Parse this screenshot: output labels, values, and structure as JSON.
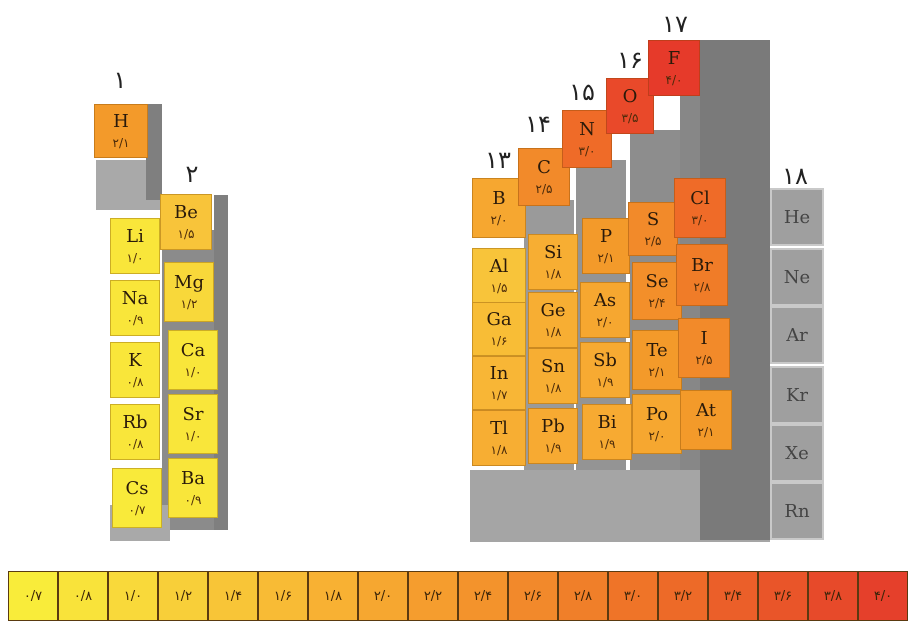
{
  "group_numbers": {
    "g1": "۱",
    "g2": "۲",
    "g13": "۱۳",
    "g14": "۱۴",
    "g15": "۱۵",
    "g16": "۱۶",
    "g17": "۱۷",
    "g18": "۱۸"
  },
  "elements": [
    {
      "symbol": "H",
      "en": "۲/۱",
      "color": "#f39a2a"
    },
    {
      "symbol": "Li",
      "en": "۱/۰",
      "color": "#f9e63a"
    },
    {
      "symbol": "Na",
      "en": "۰/۹",
      "color": "#f9e63a"
    },
    {
      "symbol": "K",
      "en": "۰/۸",
      "color": "#f9e63a"
    },
    {
      "symbol": "Rb",
      "en": "۰/۸",
      "color": "#f9e63a"
    },
    {
      "symbol": "Cs",
      "en": "۰/۷",
      "color": "#f9ea3a"
    },
    {
      "symbol": "Be",
      "en": "۱/۵",
      "color": "#f8c43a"
    },
    {
      "symbol": "Mg",
      "en": "۱/۲",
      "color": "#f8d83a"
    },
    {
      "symbol": "Ca",
      "en": "۱/۰",
      "color": "#f9e63a"
    },
    {
      "symbol": "Sr",
      "en": "۱/۰",
      "color": "#f9e63a"
    },
    {
      "symbol": "Ba",
      "en": "۰/۹",
      "color": "#f9e63a"
    },
    {
      "symbol": "B",
      "en": "۲/۰",
      "color": "#f6a730"
    },
    {
      "symbol": "Al",
      "en": "۱/۵",
      "color": "#f8c43a"
    },
    {
      "symbol": "Ga",
      "en": "۱/۶",
      "color": "#f8bd36"
    },
    {
      "symbol": "In",
      "en": "۱/۷",
      "color": "#f8b636"
    },
    {
      "symbol": "Tl",
      "en": "۱/۸",
      "color": "#f7ae33"
    },
    {
      "symbol": "C",
      "en": "۲/۵",
      "color": "#f28a2a"
    },
    {
      "symbol": "Si",
      "en": "۱/۸",
      "color": "#f7ae33"
    },
    {
      "symbol": "Ge",
      "en": "۱/۸",
      "color": "#f7ae33"
    },
    {
      "symbol": "Sn",
      "en": "۱/۸",
      "color": "#f7ae33"
    },
    {
      "symbol": "Pb",
      "en": "۱/۹",
      "color": "#f7aa32"
    },
    {
      "symbol": "N",
      "en": "۳/۰",
      "color": "#ef6b28"
    },
    {
      "symbol": "P",
      "en": "۲/۱",
      "color": "#f39a2a"
    },
    {
      "symbol": "As",
      "en": "۲/۰",
      "color": "#f6a730"
    },
    {
      "symbol": "Sb",
      "en": "۱/۹",
      "color": "#f7aa32"
    },
    {
      "symbol": "Bi",
      "en": "۱/۹",
      "color": "#f7aa32"
    },
    {
      "symbol": "O",
      "en": "۳/۵",
      "color": "#e9492a"
    },
    {
      "symbol": "S",
      "en": "۲/۵",
      "color": "#f28a2a"
    },
    {
      "symbol": "Se",
      "en": "۲/۴",
      "color": "#f38f2a"
    },
    {
      "symbol": "Te",
      "en": "۲/۱",
      "color": "#f39a2a"
    },
    {
      "symbol": "Po",
      "en": "۲/۰",
      "color": "#f6a730"
    },
    {
      "symbol": "F",
      "en": "۴/۰",
      "color": "#e63a2a"
    },
    {
      "symbol": "Cl",
      "en": "۳/۰",
      "color": "#ef6b28"
    },
    {
      "symbol": "Br",
      "en": "۲/۸",
      "color": "#f07c28"
    },
    {
      "symbol": "I",
      "en": "۲/۵",
      "color": "#f28a2a"
    },
    {
      "symbol": "At",
      "en": "۲/۱",
      "color": "#f39a2a"
    },
    {
      "symbol": "He",
      "en": "",
      "color": "#9f9f9f"
    },
    {
      "symbol": "Ne",
      "en": "",
      "color": "#9f9f9f"
    },
    {
      "symbol": "Ar",
      "en": "",
      "color": "#9f9f9f"
    },
    {
      "symbol": "Kr",
      "en": "",
      "color": "#9f9f9f"
    },
    {
      "symbol": "Xe",
      "en": "",
      "color": "#9f9f9f"
    },
    {
      "symbol": "Rn",
      "en": "",
      "color": "#9f9f9f"
    }
  ],
  "scale": {
    "labels": [
      "۰/۷",
      "۰/۸",
      "۱/۰",
      "۱/۲",
      "۱/۴",
      "۱/۶",
      "۱/۸",
      "۲/۰",
      "۲/۲",
      "۲/۴",
      "۲/۶",
      "۲/۸",
      "۳/۰",
      "۳/۲",
      "۳/۴",
      "۳/۶",
      "۳/۸",
      "۴/۰"
    ],
    "colors": [
      "#f9ec3a",
      "#f9e33a",
      "#f9d93a",
      "#f8cf39",
      "#f8c537",
      "#f8bb35",
      "#f8b133",
      "#f6a730",
      "#f59d2e",
      "#f3932c",
      "#f2892b",
      "#f07f29",
      "#ef7428",
      "#ed6a28",
      "#eb5f29",
      "#e95529",
      "#e74a2a",
      "#e5402b"
    ]
  }
}
